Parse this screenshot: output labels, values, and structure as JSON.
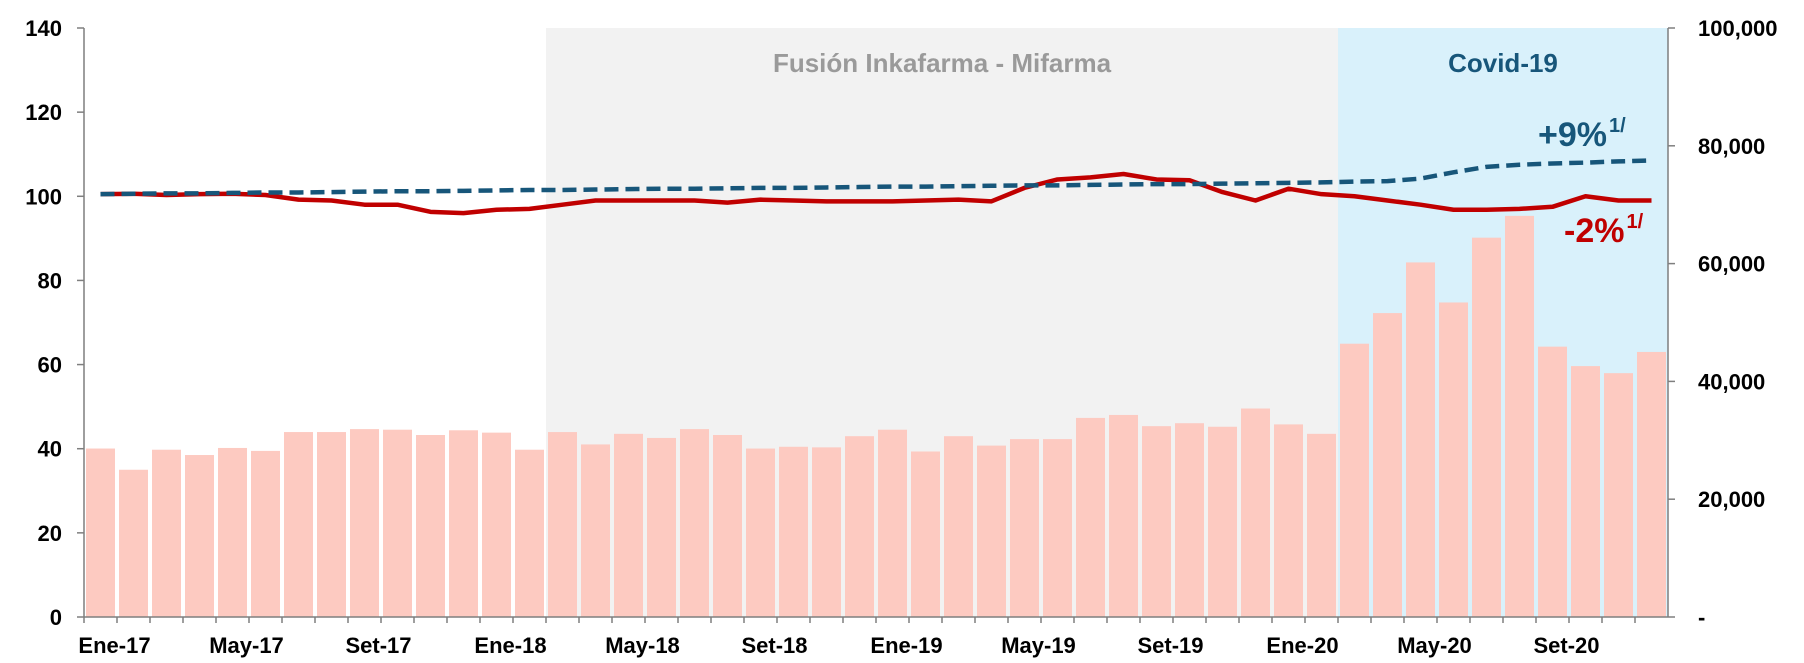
{
  "chart_data": {
    "type": "bar_line",
    "categories": [
      "Ene-17",
      null,
      null,
      null,
      "May-17",
      null,
      null,
      null,
      "Set-17",
      null,
      null,
      null,
      "Ene-18",
      null,
      null,
      null,
      "May-18",
      null,
      null,
      null,
      "Set-18",
      null,
      null,
      null,
      "Ene-19",
      null,
      null,
      null,
      "May-19",
      null,
      null,
      null,
      "Set-19",
      null,
      null,
      null,
      "Ene-20",
      null,
      null,
      null,
      "May-20",
      null,
      null,
      null,
      "Set-20",
      null,
      null,
      null
    ],
    "series": [
      {
        "type": "bar",
        "axis": "y2",
        "color": "#fdcac1",
        "values": [
          28600,
          25000,
          28400,
          27500,
          28700,
          28200,
          31400,
          31400,
          31900,
          31800,
          30900,
          31700,
          31300,
          28400,
          31400,
          29300,
          31100,
          30400,
          31900,
          30900,
          28600,
          28900,
          28800,
          30700,
          31800,
          28100,
          30700,
          29100,
          30200,
          30200,
          33800,
          34300,
          32400,
          32900,
          32300,
          35400,
          32700,
          31100,
          46400,
          51600,
          60200,
          53400,
          64400,
          68100,
          45900,
          42600,
          41400,
          45000
        ]
      },
      {
        "type": "line",
        "color": "#c00000",
        "dash": false,
        "values": [
          100.5,
          100.6,
          100.3,
          100.5,
          100.6,
          100.3,
          99.2,
          99,
          98,
          98,
          96.3,
          96,
          96.8,
          97,
          98,
          99,
          99,
          99,
          99,
          98.5,
          99.2,
          99,
          98.8,
          98.8,
          98.8,
          99,
          99.2,
          98.8,
          102,
          104,
          104.5,
          105.3,
          104,
          103.8,
          101,
          99,
          101.8,
          100.5,
          100,
          99,
          98,
          96.8,
          96.8,
          97,
          97.5,
          100,
          99,
          99
        ]
      },
      {
        "type": "line",
        "color": "#17567a",
        "dash": true,
        "values": [
          100.5,
          100.6,
          100.7,
          100.7,
          100.8,
          100.9,
          100.9,
          101,
          101.1,
          101.2,
          101.2,
          101.3,
          101.4,
          101.5,
          101.5,
          101.6,
          101.7,
          101.8,
          101.8,
          101.9,
          102,
          102,
          102.1,
          102.2,
          102.3,
          102.3,
          102.4,
          102.5,
          102.6,
          102.6,
          102.7,
          102.8,
          102.9,
          102.9,
          103,
          103.1,
          103.2,
          103.3,
          103.5,
          103.6,
          104.2,
          105.7,
          107,
          107.5,
          107.8,
          108,
          108.3,
          108.5
        ]
      }
    ],
    "ylim": [
      0,
      140
    ],
    "yticks": [
      0,
      20,
      40,
      60,
      80,
      100,
      120,
      140
    ],
    "y2lim": [
      0,
      100000
    ],
    "y2ticks": [
      {
        "value": 0,
        "label": "-"
      },
      {
        "value": 20000,
        "label": "20,000"
      },
      {
        "value": 40000,
        "label": "40,000"
      },
      {
        "value": 60000,
        "label": "60,000"
      },
      {
        "value": 80000,
        "label": "80,000"
      },
      {
        "value": 100000,
        "label": "100,000"
      }
    ],
    "regions": [
      {
        "label": "Fusión Inkafarma - Mifarma",
        "from": 14,
        "to": 38,
        "color": "#f2f2f2",
        "text_color": "#9a9a9a"
      },
      {
        "label": "Covid-19",
        "from": 38,
        "to": 48,
        "color": "#d9f1fb",
        "text_color": "#17567a"
      }
    ],
    "annotations": [
      {
        "text": "+9%",
        "sup": "1/",
        "color": "#17567a"
      },
      {
        "text": "-2%",
        "sup": "1/",
        "color": "#c00000"
      }
    ]
  }
}
